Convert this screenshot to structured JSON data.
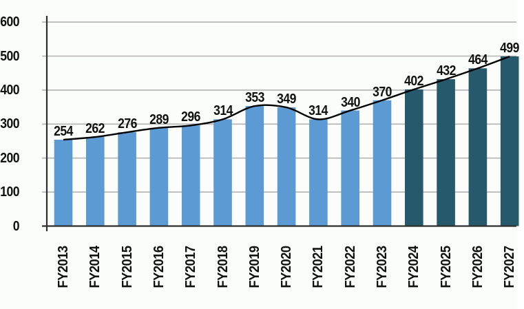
{
  "chart_data": {
    "type": "bar",
    "overlay": "smoothed trend line through bar tops",
    "title": "",
    "xlabel": "",
    "ylabel": "",
    "categories": [
      "FY2013",
      "FY2014",
      "FY2015",
      "FY2016",
      "FY2017",
      "FY2018",
      "FY2019",
      "FY2020",
      "FY2021",
      "FY2022",
      "FY2023",
      "FY2024",
      "FY2025",
      "FY2026",
      "FY2027"
    ],
    "values": [
      254,
      262,
      276,
      289,
      296,
      314,
      353,
      349,
      314,
      340,
      370,
      402,
      432,
      464,
      499
    ],
    "data_labels": [
      "254",
      "262",
      "276",
      "289",
      "296",
      "314",
      "353",
      "349",
      "314",
      "340",
      "370",
      "402",
      "432",
      "464",
      "499"
    ],
    "actual_count": 11,
    "yticks": [
      0,
      100,
      200,
      300,
      400,
      500,
      600
    ],
    "ytick_labels": [
      "0",
      "100",
      "200",
      "300",
      "400",
      "500",
      "600"
    ],
    "ylim": [
      0,
      600
    ],
    "grid": "horizontal",
    "legend_position": "none"
  },
  "colors": {
    "actual_bar": "#5b9ad2",
    "projected_bar": "#26596b",
    "trend_line": "#000000",
    "gridline": "#b3b3b3",
    "axis": "#2f2f2f",
    "background": "#fbfdfa",
    "text": "#111111"
  }
}
